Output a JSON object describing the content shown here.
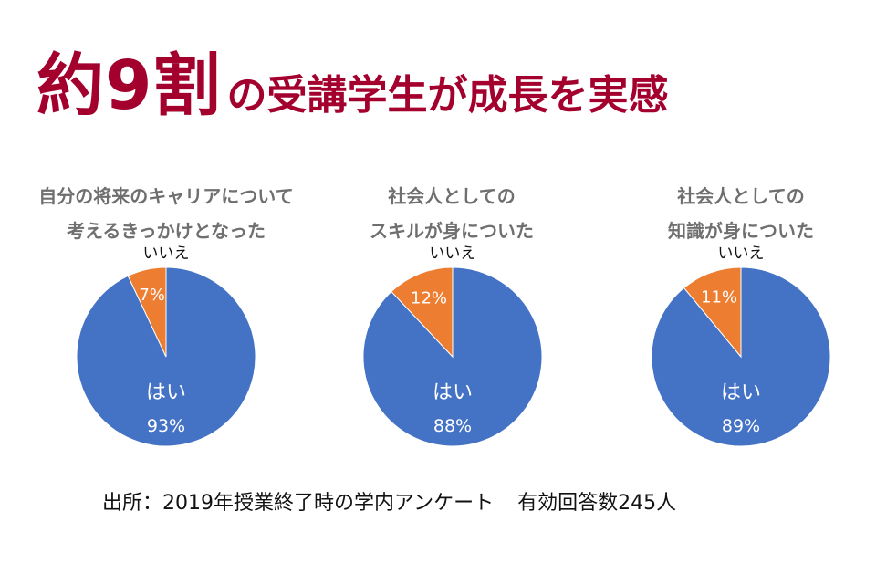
{
  "headline": {
    "big": "約9割",
    "small": "の受講学生が成長を実感"
  },
  "source": {
    "text": "出所：2019年授業終了時の学内アンケート",
    "count": "有効回答数245人"
  },
  "colors": {
    "yes": "#4472c4",
    "no": "#ed7d31",
    "accent": "#a3002e"
  },
  "chart_data": [
    {
      "type": "pie",
      "title": [
        "自分の将来のキャリアについて",
        "考えるきっかけとなった"
      ],
      "slices": [
        {
          "label": "はい",
          "value": 93,
          "display": "93%"
        },
        {
          "label": "いいえ",
          "value": 7,
          "display": "7%"
        }
      ]
    },
    {
      "type": "pie",
      "title": [
        "社会人としての",
        "スキルが身についた"
      ],
      "slices": [
        {
          "label": "はい",
          "value": 88,
          "display": "88%"
        },
        {
          "label": "いいえ",
          "value": 12,
          "display": "12%"
        }
      ]
    },
    {
      "type": "pie",
      "title": [
        "社会人としての",
        "知識が身についた"
      ],
      "slices": [
        {
          "label": "はい",
          "value": 89,
          "display": "89%"
        },
        {
          "label": "いいえ",
          "value": 11,
          "display": "11%"
        }
      ]
    }
  ]
}
